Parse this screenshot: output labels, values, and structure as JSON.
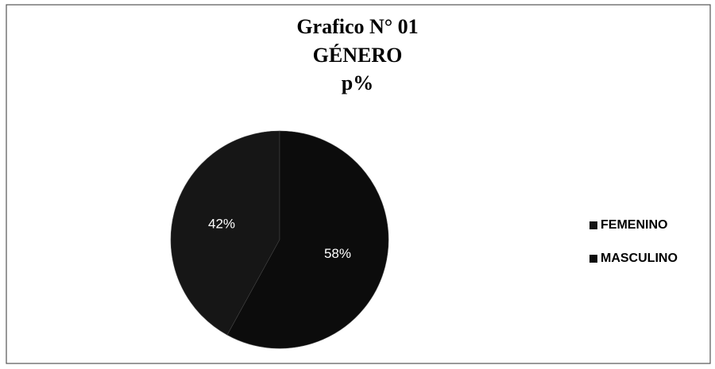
{
  "chart_data": {
    "type": "pie",
    "title": "Grafico N° 01",
    "subtitle": "GÉNERO",
    "unit_label": "p%",
    "categories": [
      "FEMENINO",
      "MASCULINO"
    ],
    "values": [
      42,
      58
    ],
    "value_labels": [
      "42%",
      "58%"
    ],
    "colors": [
      "#161616",
      "#0c0c0c"
    ],
    "legend": "right"
  }
}
